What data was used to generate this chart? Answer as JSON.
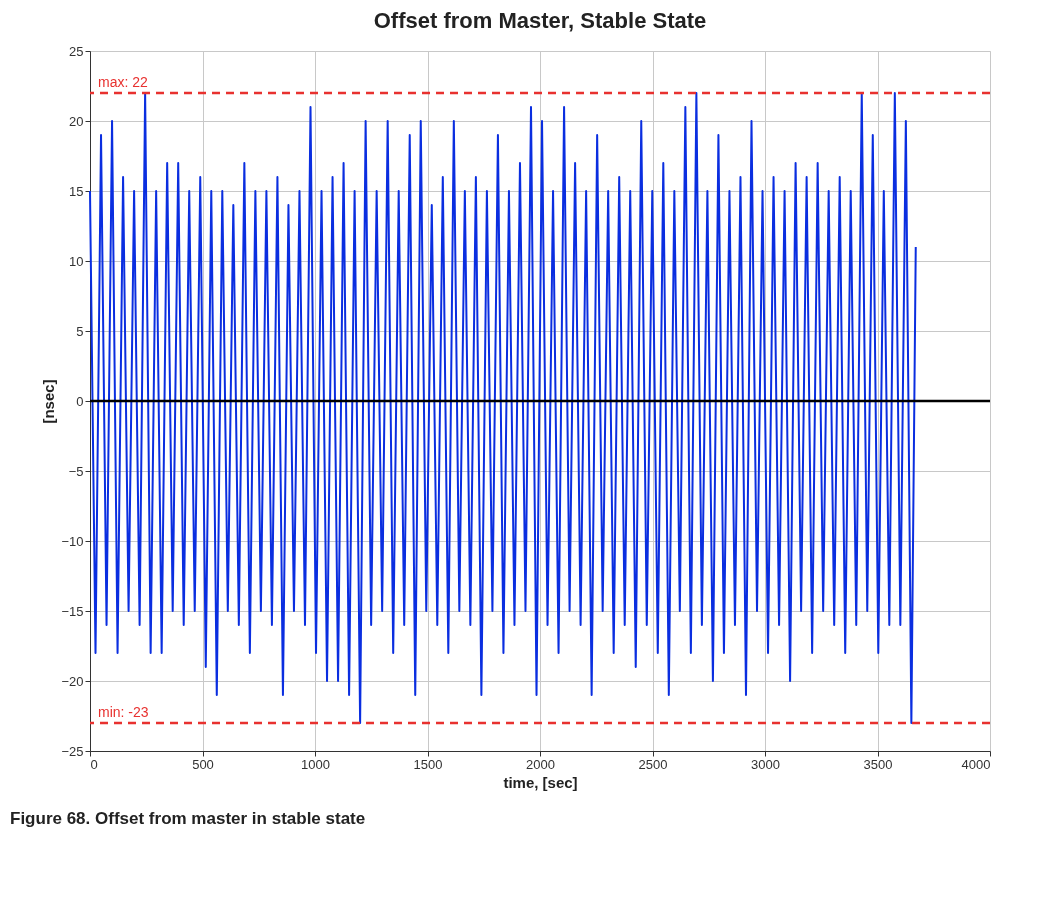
{
  "chart_data": {
    "type": "line",
    "title": "Offset from Master, Stable State",
    "xlabel": "time, [sec]",
    "ylabel": "[nsec]",
    "xlim": [
      0,
      4000
    ],
    "xticks": [
      0,
      500,
      1000,
      1500,
      2000,
      2500,
      3000,
      3500,
      4000
    ],
    "ylim": [
      -25,
      25
    ],
    "yticks": [
      -25,
      -20,
      -15,
      -10,
      -5,
      0,
      5,
      10,
      15,
      20,
      25
    ],
    "grid": true,
    "legend": false,
    "marker": "none",
    "line_style": "solid",
    "series": [
      {
        "color": "#0a2ee0",
        "x": [
          0,
          24.5,
          49,
          73.5,
          98,
          122.5,
          147,
          171.5,
          196,
          220.5,
          245,
          269.5,
          294,
          318.5,
          343,
          367.5,
          392,
          416.5,
          441,
          465.5,
          490,
          514.5,
          539,
          563.5,
          588,
          612.5,
          637,
          661.5,
          686,
          710.5,
          735,
          759.5,
          784,
          808.5,
          833,
          857.5,
          882,
          906.5,
          931,
          955.5,
          980,
          1004.5,
          1029,
          1053.5,
          1078,
          1102.5,
          1127,
          1151.5,
          1176,
          1200.5,
          1225,
          1249.5,
          1274,
          1298.5,
          1323,
          1347.5,
          1372,
          1396.5,
          1421,
          1445.5,
          1470,
          1494.5,
          1519,
          1543.5,
          1568,
          1592.5,
          1617,
          1641.5,
          1666,
          1690.5,
          1715,
          1739.5,
          1764,
          1788.5,
          1813,
          1837.5,
          1862,
          1886.5,
          1911,
          1935.5,
          1960,
          1984.5,
          2009,
          2033.5,
          2058,
          2082.5,
          2107,
          2131.5,
          2156,
          2180.5,
          2205,
          2229.5,
          2254,
          2278.5,
          2303,
          2327.5,
          2352,
          2376.5,
          2401,
          2425.5,
          2450,
          2474.5,
          2499,
          2523.5,
          2548,
          2572.5,
          2597,
          2621.5,
          2646,
          2670.5,
          2695,
          2719.5,
          2744,
          2768.5,
          2793,
          2817.5,
          2842,
          2866.5,
          2891,
          2915.5,
          2940,
          2964.5,
          2989,
          3013.5,
          3038,
          3062.5,
          3087,
          3111.5,
          3136,
          3160.5,
          3185,
          3209.5,
          3234,
          3258.5,
          3283,
          3307.5,
          3332,
          3356.5,
          3381,
          3405.5,
          3430,
          3454.5,
          3479,
          3503.5,
          3528,
          3552.5,
          3577,
          3601.5,
          3626,
          3650.5,
          3670
        ],
        "values": [
          15,
          -18,
          19,
          -16,
          20,
          -18,
          16,
          -15,
          15,
          -16,
          22,
          -18,
          15,
          -18,
          17,
          -15,
          17,
          -16,
          15,
          -15,
          16,
          -19,
          15,
          -21,
          15,
          -15,
          14,
          -16,
          17,
          -18,
          15,
          -15,
          15,
          -16,
          16,
          -21,
          14,
          -15,
          15,
          -16,
          21,
          -18,
          15,
          -20,
          16,
          -20,
          17,
          -21,
          15,
          -23,
          20,
          -16,
          15,
          -15,
          20,
          -18,
          15,
          -16,
          19,
          -21,
          20,
          -15,
          14,
          -16,
          16,
          -18,
          20,
          -15,
          15,
          -16,
          16,
          -21,
          15,
          -15,
          19,
          -18,
          15,
          -16,
          17,
          -15,
          21,
          -21,
          20,
          -16,
          15,
          -18,
          21,
          -15,
          17,
          -16,
          15,
          -21,
          19,
          -15,
          15,
          -18,
          16,
          -16,
          15,
          -19,
          20,
          -16,
          15,
          -18,
          17,
          -21,
          15,
          -15,
          21,
          -18,
          22,
          -16,
          15,
          -20,
          19,
          -18,
          15,
          -16,
          16,
          -21,
          20,
          -15,
          15,
          -18,
          16,
          -16,
          15,
          -20,
          17,
          -15,
          16,
          -18,
          17,
          -15,
          15,
          -16,
          16,
          -18,
          15,
          -16,
          22,
          -15,
          19,
          -18,
          15,
          -16,
          22,
          -16,
          20,
          -23,
          11
        ]
      }
    ],
    "ref_lines": [
      {
        "axis": "y",
        "value": 22,
        "label": "max: 22",
        "color": "#e8312f",
        "line_style": "dashed"
      },
      {
        "axis": "y",
        "value": -23,
        "label": "min: -23",
        "color": "#e8312f",
        "line_style": "dashed"
      },
      {
        "axis": "y",
        "value": 0,
        "color": "#000000",
        "line_style": "solid"
      }
    ],
    "annotations": [
      "Figure 68.  Offset from master in stable state"
    ]
  }
}
